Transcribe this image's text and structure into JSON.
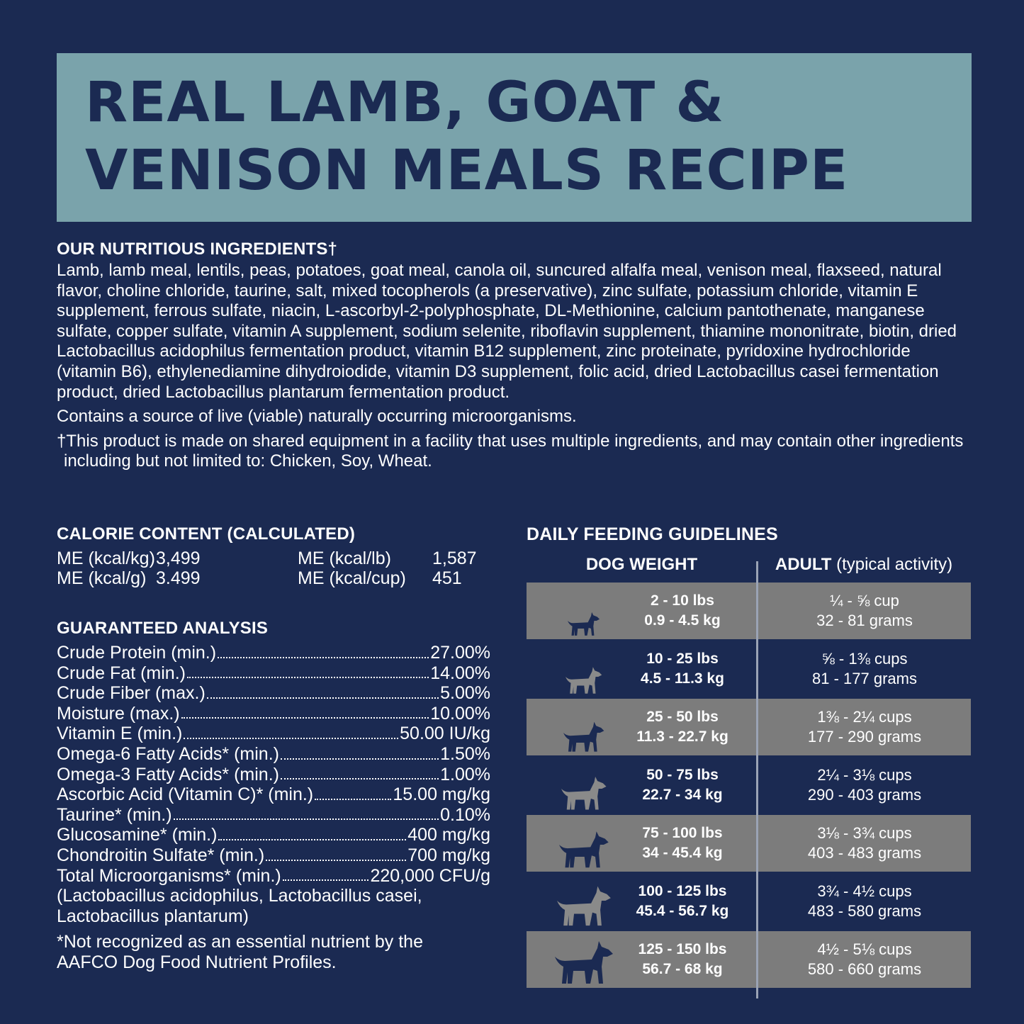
{
  "title": [
    "REAL LAMB, GOAT &",
    "VENISON MEALS RECIPE"
  ],
  "ingredients": {
    "heading": "OUR NUTRITIOUS INGREDIENTS†",
    "text": "Lamb, lamb meal, lentils, peas, potatoes, goat meal, canola oil, suncured alfalfa meal, venison meal, flaxseed, natural flavor, choline chloride, taurine, salt, mixed tocopherols (a preservative), zinc sulfate, potassium chloride, vitamin E supplement, ferrous sulfate, niacin, L-ascorbyl-2-polyphosphate, DL-Methionine, calcium pantothenate, manganese sulfate, copper sulfate, vitamin A supplement, sodium selenite, riboflavin supplement, thiamine mononitrate, biotin, dried Lactobacillus acidophilus fermentation product, vitamin B12 supplement, zinc proteinate, pyridoxine hydrochloride (vitamin B6), ethylenediamine dihydroiodide, vitamin D3 supplement, folic acid, dried Lactobacillus casei fermentation product, dried Lactobacillus plantarum fermentation product.",
    "microorganisms": "Contains a source of live (viable) naturally occurring microorganisms.",
    "disclaimer": "†This product is made on shared equipment in a facility that uses multiple ingredients, and may contain other ingredients including but not limited to: Chicken, Soy, Wheat."
  },
  "calorie": {
    "heading": "CALORIE CONTENT (CALCULATED)",
    "items": [
      {
        "label": "ME (kcal/kg)",
        "value": "3,499"
      },
      {
        "label": "ME (kcal/lb)",
        "value": "1,587"
      },
      {
        "label": "ME (kcal/g)",
        "value": "3.499"
      },
      {
        "label": "ME (kcal/cup)",
        "value": "451"
      }
    ]
  },
  "analysis": {
    "heading": "GUARANTEED ANALYSIS",
    "rows": [
      {
        "label": "Crude Protein (min.)",
        "value": "27.00%"
      },
      {
        "label": "Crude Fat (min.)",
        "value": "14.00%"
      },
      {
        "label": "Crude Fiber (max.)",
        "value": "5.00%"
      },
      {
        "label": "Moisture (max.)",
        "value": "10.00%"
      },
      {
        "label": "Vitamin E (min.)",
        "value": "50.00 IU/kg"
      },
      {
        "label": "Omega-6 Fatty Acids* (min.)",
        "value": "1.50%"
      },
      {
        "label": "Omega-3 Fatty Acids* (min.)",
        "value": "1.00%"
      },
      {
        "label": "Ascorbic Acid (Vitamin C)* (min.)",
        "value": "15.00 mg/kg"
      },
      {
        "label": "Taurine* (min.)",
        "value": "0.10%"
      },
      {
        "label": "Glucosamine* (min.)",
        "value": "400 mg/kg"
      },
      {
        "label": "Chondroitin Sulfate* (min.)",
        "value": "700 mg/kg"
      },
      {
        "label": "Total Microorganisms* (min.)",
        "value": "220,000 CFU/g"
      }
    ],
    "strains": [
      "(Lactobacillus acidophilus, Lactobacillus casei,",
      "Lactobacillus plantarum)"
    ],
    "footnote": [
      "*Not recognized as an essential nutrient by the",
      "AAFCO Dog Food Nutrient Profiles."
    ]
  },
  "feeding": {
    "heading": "DAILY FEEDING GUIDELINES",
    "col1": "DOG WEIGHT",
    "col2_bold": "ADULT",
    "col2_rest": " (typical activity)",
    "rows": [
      {
        "lbs": "2 - 10 lbs",
        "kg": "0.9 - 4.5 kg",
        "cups": "¼ - ⅝ cup",
        "grams": "32 - 81 grams",
        "icon": "chihuahua-icon"
      },
      {
        "lbs": "10 - 25 lbs",
        "kg": "4.5 - 11.3 kg",
        "cups": "⅝ - 1⅜ cups",
        "grams": "81 - 177 grams",
        "icon": "french-bulldog-icon"
      },
      {
        "lbs": "25 - 50 lbs",
        "kg": "11.3 - 22.7 kg",
        "cups": "1⅜ - 2¼ cups",
        "grams": "177 - 290 grams",
        "icon": "spitz-icon"
      },
      {
        "lbs": "50 - 75 lbs",
        "kg": "22.7 - 34 kg",
        "cups": "2¼ - 3⅛ cups",
        "grams": "290 - 403 grams",
        "icon": "pit-bull-icon"
      },
      {
        "lbs": "75 - 100 lbs",
        "kg": "34 - 45.4 kg",
        "cups": "3⅛ - 3¾ cups",
        "grams": "403 - 483 grams",
        "icon": "great-dane-icon"
      },
      {
        "lbs": "100 - 125 lbs",
        "kg": "45.4 - 56.7 kg",
        "cups": "3¾ - 4½ cups",
        "grams": "483 - 580 grams",
        "icon": "mastiff-icon"
      },
      {
        "lbs": "125 - 150 lbs",
        "kg": "56.7 - 68 kg",
        "cups": "4½ - 5⅛ cups",
        "grams": "580 - 660 grams",
        "icon": "newfoundland-icon"
      }
    ]
  },
  "colors": {
    "background": "#1b2a52",
    "title_box": "#7aa3ab",
    "row_gray": "#7c7c7c"
  }
}
